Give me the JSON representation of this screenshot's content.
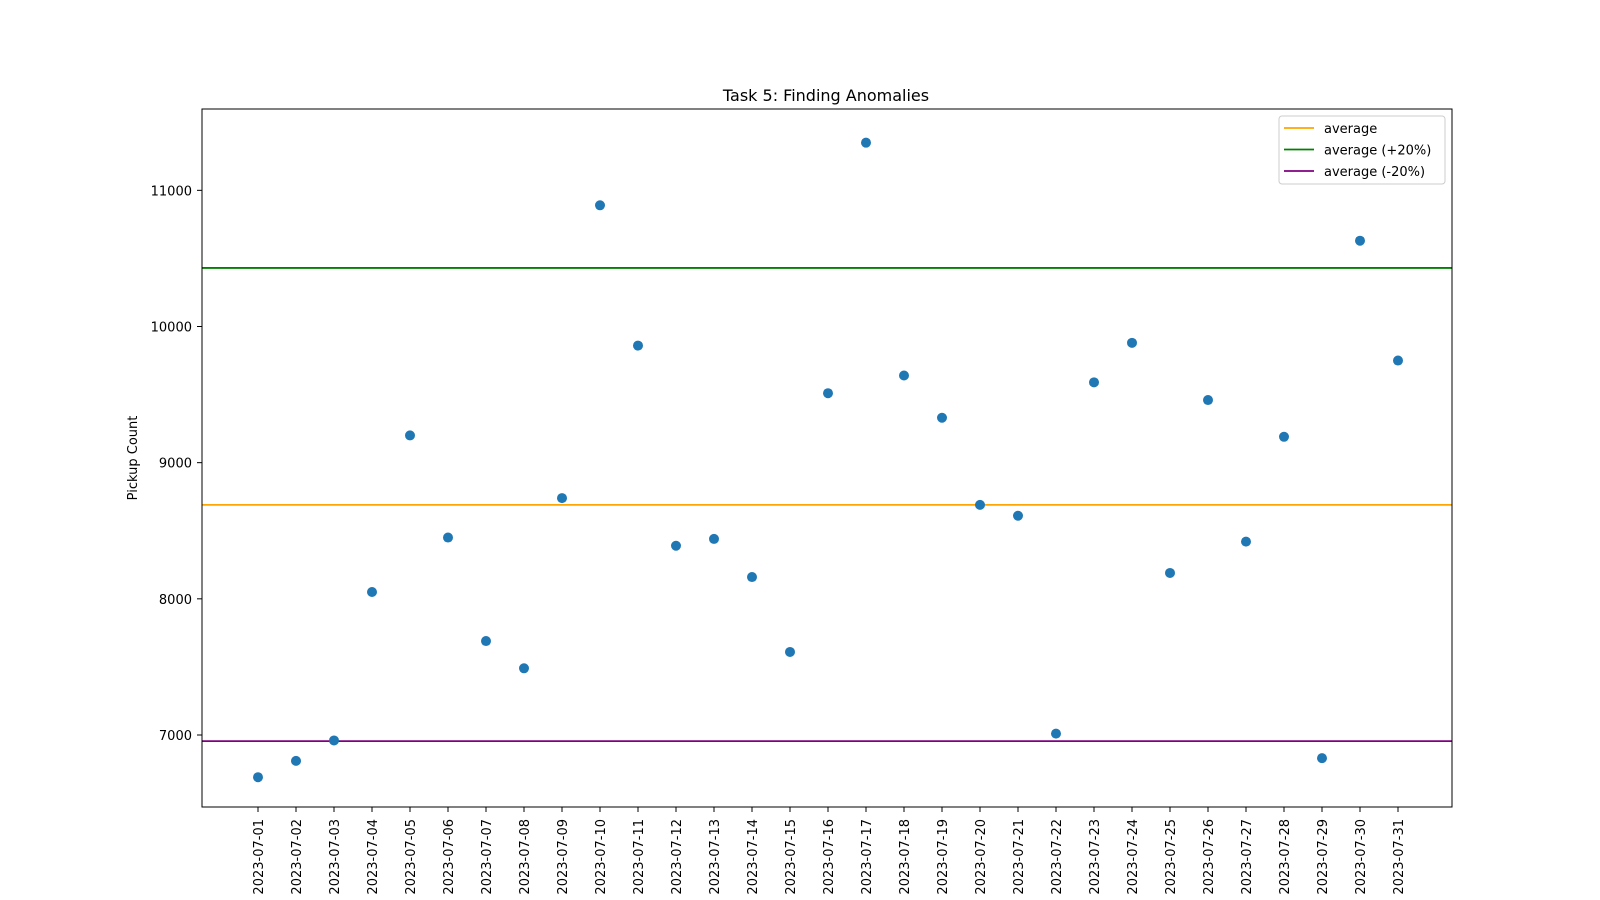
{
  "chart_data": {
    "type": "scatter",
    "title": "Task 5: Finding Anomalies",
    "xlabel": "",
    "ylabel": "Pickup Count",
    "ylim": [
      6450,
      11600
    ],
    "y_ticks": [
      7000,
      8000,
      9000,
      10000,
      11000
    ],
    "grid": false,
    "legend_position": "top-right",
    "categories": [
      "2023-07-01",
      "2023-07-02",
      "2023-07-03",
      "2023-07-04",
      "2023-07-05",
      "2023-07-06",
      "2023-07-07",
      "2023-07-08",
      "2023-07-09",
      "2023-07-10",
      "2023-07-11",
      "2023-07-12",
      "2023-07-13",
      "2023-07-14",
      "2023-07-15",
      "2023-07-16",
      "2023-07-17",
      "2023-07-18",
      "2023-07-19",
      "2023-07-20",
      "2023-07-21",
      "2023-07-22",
      "2023-07-23",
      "2023-07-24",
      "2023-07-25",
      "2023-07-26",
      "2023-07-27",
      "2023-07-28",
      "2023-07-29",
      "2023-07-30",
      "2023-07-31"
    ],
    "values": [
      6690,
      6810,
      6960,
      8050,
      9200,
      8450,
      7690,
      7490,
      8740,
      10890,
      9860,
      8390,
      8440,
      8160,
      7610,
      9510,
      11350,
      9640,
      9330,
      8690,
      8610,
      7010,
      9590,
      9880,
      8190,
      9460,
      8420,
      9190,
      6830,
      10630,
      9750
    ],
    "point_color": "#1f77b4",
    "reference_lines": [
      {
        "name": "average",
        "value": 8690,
        "color": "#ffa500"
      },
      {
        "name": "average (+20%)",
        "value": 10430,
        "color": "#008000"
      },
      {
        "name": "average (-20%)",
        "value": 6955,
        "color": "#800080"
      }
    ]
  }
}
